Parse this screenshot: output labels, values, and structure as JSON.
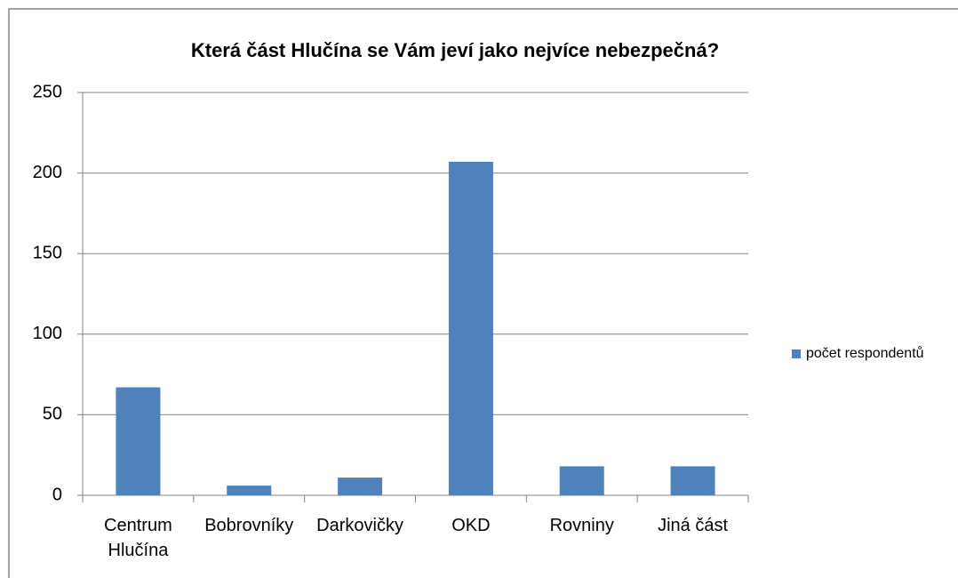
{
  "chart_data": {
    "type": "bar",
    "title": "Která část Hlučína se Vám jeví jako nejvíce nebezpečná?",
    "categories": [
      "Centrum Hlučína",
      "Bobrovníky",
      "Darkovičky",
      "OKD",
      "Rovniny",
      "Jiná část"
    ],
    "series": [
      {
        "name": "počet respondentů",
        "color": "#4f81bd",
        "values": [
          67,
          6,
          11,
          207,
          18,
          18
        ]
      }
    ],
    "ylim": [
      0,
      250
    ],
    "yticks": [
      0,
      50,
      100,
      150,
      200,
      250
    ],
    "grid": true,
    "legend": "right"
  }
}
